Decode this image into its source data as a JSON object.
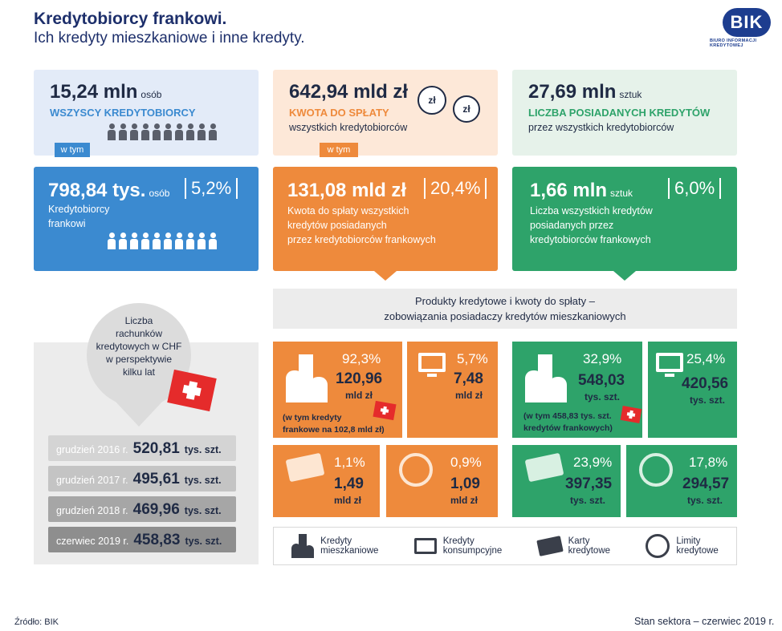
{
  "header": {
    "title": "Kredytobiorcy frankowi.",
    "subtitle": "Ich kredyty mieszkaniowe i inne kredyty.",
    "logo": "BIK",
    "logo_sub": "BIURO INFORMACJI KREDYTOWEJ"
  },
  "top": {
    "borrowers": {
      "value": "15,24 mln",
      "unit": "osób",
      "label": "WSZYSCY KREDYTOBIORCY"
    },
    "amount": {
      "value": "642,94 mld zł",
      "label": "KWOTA DO SPŁATY",
      "sub": "wszystkich kredytobiorców",
      "coin": "zł"
    },
    "credits": {
      "value": "27,69 mln",
      "unit": "sztuk",
      "label": "LICZBA POSIADANYCH KREDYTÓW",
      "sub": "przez wszystkich kredytobiorców"
    },
    "in_tym": "w tym"
  },
  "chf": {
    "borrowers": {
      "value": "798,84 tys.",
      "unit": "osób",
      "pct": "5,2%",
      "label1": "Kredytobiorcy",
      "label2": "frankowi"
    },
    "amount": {
      "value": "131,08 mld zł",
      "pct": "20,4%",
      "label1": "Kwota do spłaty wszystkich",
      "label2": "kredytów posiadanych",
      "label3": "przez kredytobiorców frankowych"
    },
    "credits": {
      "value": "1,66 mln",
      "unit": "sztuk",
      "pct": "6,0%",
      "label1": "Liczba wszystkich kredytów",
      "label2": "posiadanych przez",
      "label3": "kredytobiorców frankowych"
    }
  },
  "accounts": {
    "bubble": [
      "Liczba",
      "rachunków",
      "kredytowych w CHF",
      "w perspektywie",
      "kilku lat"
    ],
    "rows": [
      {
        "label": "grudzień 2016 r.",
        "value": "520,81",
        "unit": "tys. szt."
      },
      {
        "label": "grudzień 2017 r.",
        "value": "495,61",
        "unit": "tys. szt."
      },
      {
        "label": "grudzień 2018 r.",
        "value": "469,96",
        "unit": "tys. szt."
      },
      {
        "label": "czerwiec 2019 r.",
        "value": "458,83",
        "unit": "tys. szt."
      }
    ]
  },
  "products": {
    "header1": "Produkty kredytowe i kwoty do spłaty –",
    "header2": "zobowiązania posiadaczy kredytów mieszkaniowych",
    "orange": {
      "mortgage": {
        "pct": "92,3%",
        "value": "120,96",
        "unit": "mld zł",
        "note1": "(w tym kredyty",
        "note2": "frankowe na 102,8 mld zł)"
      },
      "consumer": {
        "pct": "5,7%",
        "value": "7,48",
        "unit": "mld zł"
      },
      "cards": {
        "pct": "1,1%",
        "value": "1,49",
        "unit": "mld zł"
      },
      "limits": {
        "pct": "0,9%",
        "value": "1,09",
        "unit": "mld zł"
      }
    },
    "green": {
      "mortgage": {
        "pct": "32,9%",
        "value": "548,03",
        "unit": "tys. szt.",
        "note1": "(w tym 458,83 tys. szt.",
        "note2": "kredytów frankowych)"
      },
      "consumer": {
        "pct": "25,4%",
        "value": "420,56",
        "unit": "tys. szt."
      },
      "cards": {
        "pct": "23,9%",
        "value": "397,35",
        "unit": "tys. szt."
      },
      "limits": {
        "pct": "17,8%",
        "value": "294,57",
        "unit": "tys. szt."
      }
    }
  },
  "legend": [
    {
      "icon": "building-icon",
      "line1": "Kredyty",
      "line2": "mieszkaniowe"
    },
    {
      "icon": "monitor-icon",
      "line1": "Kredyty",
      "line2": "konsumpcyjne"
    },
    {
      "icon": "card-icon",
      "line1": "Karty",
      "line2": "kredytowe"
    },
    {
      "icon": "limit-icon",
      "line1": "Limity",
      "line2": "kredytowe"
    }
  ],
  "footer": {
    "source": "Źródło: BIK",
    "status": "Stan sektora – czerwiec 2019 r."
  },
  "colors": {
    "blue": "#3b8ad0",
    "orange": "#ee8a3c",
    "green": "#2ea36a",
    "navy": "#1d2f6b"
  }
}
